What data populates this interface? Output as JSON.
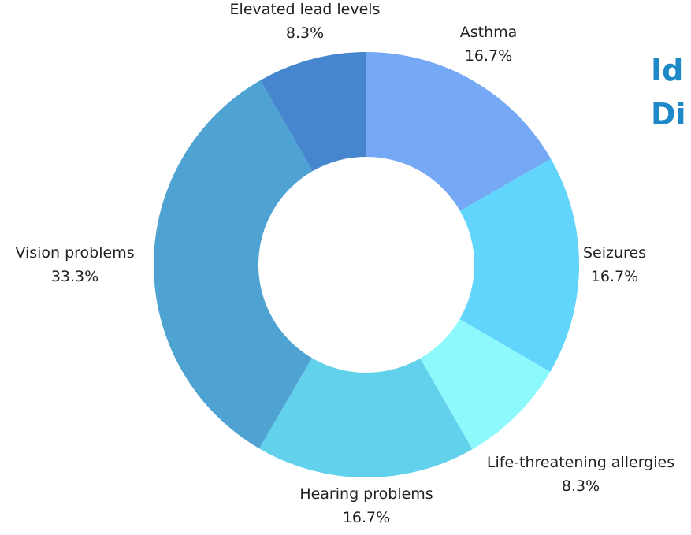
{
  "chart_data": {
    "type": "pie",
    "title_lines": [
      "Id",
      "Di"
    ],
    "categories": [
      "Asthma",
      "Seizures",
      "Life-threatening allergies",
      "Hearing problems",
      "Vision problems",
      "Elevated lead levels"
    ],
    "values": [
      16.7,
      16.7,
      8.3,
      16.7,
      33.3,
      8.3
    ],
    "value_labels": [
      "16.7%",
      "16.7%",
      "8.3%",
      "16.7%",
      "33.3%",
      "8.3%"
    ],
    "colors": [
      "#75a8f5",
      "#62d5fc",
      "#8ef9fd",
      "#62d1ec",
      "#4fa3d2",
      "#4586ce"
    ],
    "donut": true
  }
}
